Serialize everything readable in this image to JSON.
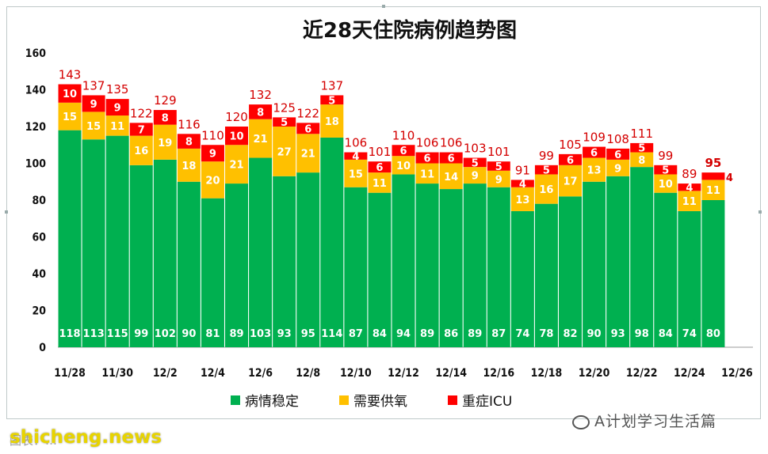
{
  "chart_data": {
    "type": "bar",
    "stacked": true,
    "title": "近28天住院病例趋势图",
    "categories": [
      "11/28",
      "11/29",
      "11/30",
      "12/1",
      "12/2",
      "12/3",
      "12/4",
      "12/5",
      "12/6",
      "12/7",
      "12/8",
      "12/9",
      "12/10",
      "12/11",
      "12/12",
      "12/13",
      "12/14",
      "12/15",
      "12/16",
      "12/17",
      "12/18",
      "12/19",
      "12/20",
      "12/21",
      "12/22",
      "12/23",
      "12/24",
      "12/25"
    ],
    "x_tick_labels": [
      "11/28",
      "11/30",
      "12/2",
      "12/4",
      "12/6",
      "12/8",
      "12/10",
      "12/12",
      "12/14",
      "12/16",
      "12/18",
      "12/20",
      "12/22",
      "12/24",
      "12/26"
    ],
    "ylim": [
      0,
      160
    ],
    "yticks": [
      "0",
      "20",
      "40",
      "60",
      "80",
      "100",
      "120",
      "140",
      "160"
    ],
    "series": [
      {
        "name": "病情稳定",
        "color": "#00b050",
        "values": [
          118,
          113,
          115,
          99,
          102,
          90,
          81,
          89,
          103,
          93,
          95,
          114,
          87,
          84,
          94,
          89,
          86,
          89,
          87,
          74,
          78,
          82,
          90,
          93,
          98,
          84,
          74,
          80
        ]
      },
      {
        "name": "需要供氧",
        "color": "#ffc000",
        "values": [
          15,
          15,
          11,
          16,
          19,
          18,
          20,
          21,
          21,
          27,
          21,
          18,
          15,
          11,
          10,
          11,
          14,
          9,
          9,
          13,
          16,
          17,
          13,
          9,
          8,
          10,
          11,
          11
        ]
      },
      {
        "name": "重症ICU",
        "color": "#ff0000",
        "values": [
          10,
          9,
          9,
          7,
          8,
          8,
          9,
          10,
          8,
          5,
          6,
          5,
          4,
          6,
          6,
          6,
          6,
          5,
          5,
          4,
          5,
          6,
          6,
          6,
          5,
          5,
          4,
          4
        ]
      }
    ],
    "totals": [
      143,
      137,
      135,
      122,
      129,
      116,
      110,
      120,
      132,
      125,
      122,
      137,
      106,
      101,
      110,
      106,
      106,
      103,
      101,
      91,
      99,
      105,
      109,
      108,
      111,
      99,
      89,
      95
    ],
    "legend_position": "bottom"
  },
  "watermark": {
    "text": "A计划学习生活篇"
  },
  "footer": {
    "site": "shicheng.news",
    "source": "图表：…"
  }
}
